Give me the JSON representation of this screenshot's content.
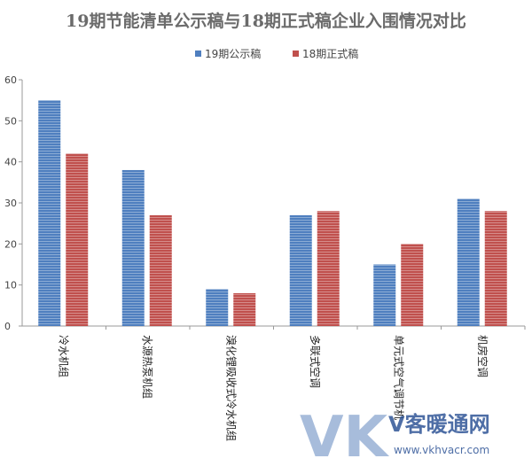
{
  "chart_data": {
    "type": "bar",
    "title": "19期节能清单公示稿与18期正式稿企业入围情况对比",
    "categories": [
      "冷水机组",
      "水源热泵机组",
      "溴化锂吸收式冷水机组",
      "多联式空调",
      "单元式空气调节机",
      "机房空调"
    ],
    "series": [
      {
        "name": "19期公示稿",
        "values": [
          55,
          38,
          9,
          27,
          15,
          31
        ],
        "color": "#4f7fbf"
      },
      {
        "name": "18期正式稿",
        "values": [
          42,
          27,
          8,
          28,
          20,
          28
        ],
        "color": "#c0504d"
      }
    ],
    "ylim": [
      0,
      60
    ],
    "yticks": [
      0,
      10,
      20,
      30,
      40,
      50,
      60
    ],
    "grid": false,
    "legend": "top"
  },
  "watermark": {
    "letters": "VK",
    "cn": "V客暖通网",
    "url": "www.vkhvacr.com"
  }
}
